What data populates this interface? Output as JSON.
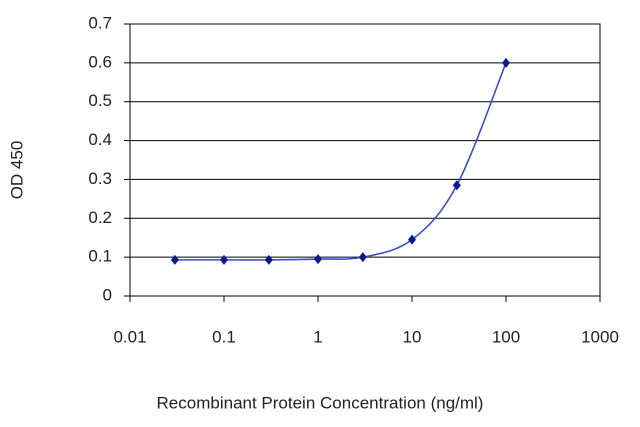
{
  "chart_data": {
    "type": "line",
    "x_label": "Recombinant Protein Concentration (ng/ml)",
    "y_label": "OD 450",
    "x": [
      0.03,
      0.1,
      0.3,
      1,
      3,
      10,
      30,
      100
    ],
    "values": [
      0.093,
      0.093,
      0.093,
      0.095,
      0.1,
      0.145,
      0.285,
      0.6
    ],
    "color": "#0a1a8c",
    "line_color": "#3a4fc8",
    "xscale": "log",
    "xlim": [
      0.01,
      1000
    ],
    "xticks": [
      0.01,
      0.1,
      1,
      10,
      100,
      1000
    ],
    "ylim": [
      0,
      0.7
    ],
    "yticks": [
      0,
      0.1,
      0.2,
      0.3,
      0.4,
      0.5,
      0.6,
      0.7
    ],
    "grid": true
  }
}
